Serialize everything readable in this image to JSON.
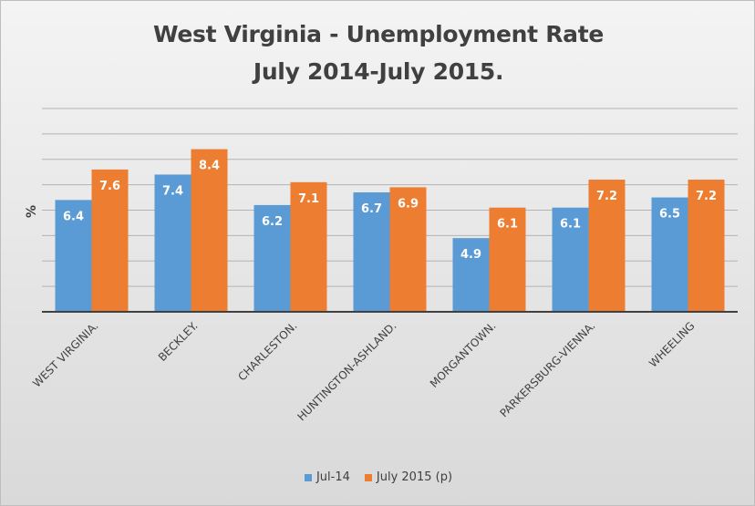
{
  "chart_data": {
    "type": "bar",
    "title": "West Virginia - Unemployment Rate",
    "subtitle": "July 2014-July 2015.",
    "ylabel": "%",
    "xlabel": "",
    "categories": [
      "WEST VIRGINIA.",
      "BECKLEY.",
      "CHARLESTON.",
      "HUNTINGTON-ASHLAND.",
      "MORGANTOWN.",
      "PARKERSBURG-VIENNA.",
      "WHEELING"
    ],
    "series": [
      {
        "name": "Jul-14",
        "color": "#5b9bd5",
        "values": [
          6.4,
          7.4,
          6.2,
          6.7,
          4.9,
          6.1,
          6.5
        ]
      },
      {
        "name": "July 2015 (p)",
        "color": "#ed7d31",
        "values": [
          7.6,
          8.4,
          7.1,
          6.9,
          6.1,
          7.2,
          7.2
        ]
      }
    ],
    "ylim": [
      2,
      10
    ],
    "grid": true,
    "tick_labels_visible": false,
    "legend_position": "bottom"
  }
}
